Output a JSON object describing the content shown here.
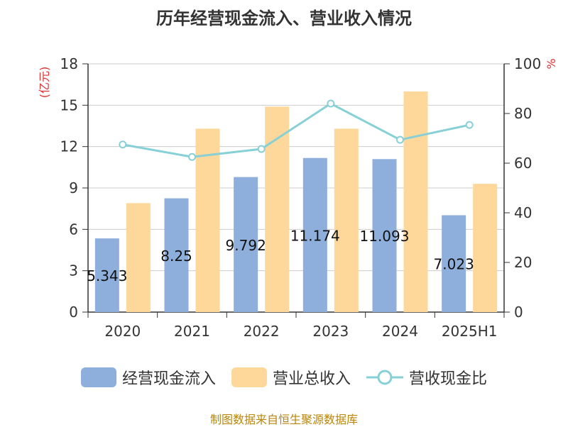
{
  "chart_data": {
    "type": "bar",
    "title": "历年经营现金流入、营业收入情况",
    "ylabel_left": "(亿元)",
    "ylabel_right": "%",
    "categories": [
      "2020",
      "2021",
      "2022",
      "2023",
      "2024",
      "2025H1"
    ],
    "ylim_left": [
      0,
      18
    ],
    "yticks_left": [
      0,
      3,
      6,
      9,
      12,
      15,
      18
    ],
    "ylim_right": [
      0,
      100
    ],
    "yticks_right": [
      0,
      20,
      40,
      60,
      80,
      100
    ],
    "grid": true,
    "legend_position": "bottom",
    "series": [
      {
        "name": "经营现金流入",
        "type": "bar",
        "axis": "left",
        "color": "#8eaedb",
        "values": [
          5.343,
          8.25,
          9.792,
          11.174,
          11.093,
          7.023
        ],
        "labels": [
          "5.343",
          "8.25",
          "9.792",
          "11.174",
          "11.093",
          "7.023"
        ]
      },
      {
        "name": "营业总收入",
        "type": "bar",
        "axis": "left",
        "color": "#fdd89a",
        "values": [
          7.9,
          13.3,
          14.9,
          13.3,
          16.0,
          9.3
        ]
      },
      {
        "name": "营收现金比",
        "type": "line",
        "axis": "right",
        "color": "#86d0d6",
        "values": [
          67.5,
          62.5,
          65.7,
          84.0,
          69.4,
          75.4
        ]
      }
    ]
  },
  "source": "制图数据来自恒生聚源数据库"
}
